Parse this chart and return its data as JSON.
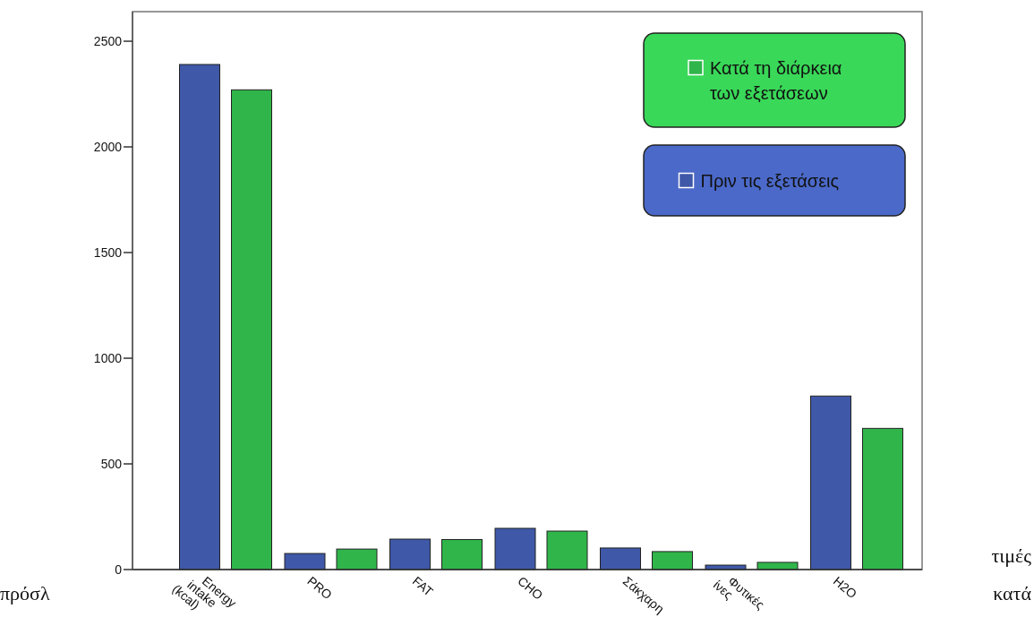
{
  "chart_data": {
    "type": "bar",
    "categories": [
      "Energy intake (kcal)",
      "PRO",
      "FAT",
      "CHO",
      "Σάκχαρη",
      "Φυτικές ίνες",
      "H2O"
    ],
    "series": [
      {
        "name": "Πριν τις εξετάσεις",
        "color": "#3f58a8",
        "values": [
          2390,
          76,
          144,
          195,
          102,
          21,
          821
        ]
      },
      {
        "name": "Κατά τη διάρκεια των εξετάσεων",
        "color": "#30b54a",
        "values": [
          2270,
          97,
          142,
          182,
          85,
          34,
          668
        ]
      }
    ],
    "ylim": [
      0,
      2640
    ],
    "yticks": [
      0,
      500,
      1000,
      1500,
      2000,
      2500
    ],
    "legend": "top right",
    "grid": false,
    "annotations": [
      "τιμές",
      "πρόσλ",
      "κατά"
    ]
  }
}
